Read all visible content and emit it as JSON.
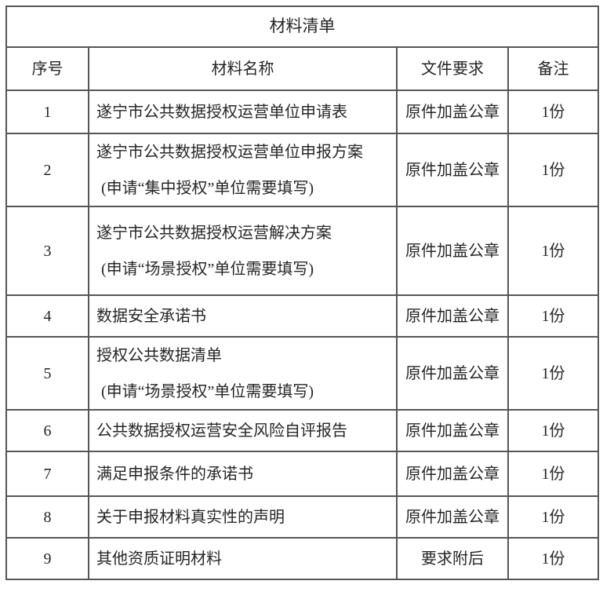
{
  "table": {
    "title": "材料清单",
    "headers": [
      "序号",
      "材料名称",
      "文件要求",
      "备注"
    ],
    "rows": [
      {
        "seq": "1",
        "name_lines": [
          "遂宁市公共数据授权运营单位申请表"
        ],
        "requirement": "原件加盖公章",
        "note": "1份"
      },
      {
        "seq": "2",
        "name_lines": [
          "遂宁市公共数据授权运营单位申报方案",
          "(申请“集中授权”单位需要填写)"
        ],
        "requirement": "原件加盖公章",
        "note": "1份"
      },
      {
        "seq": "3",
        "name_lines": [
          "遂宁市公共数据授权运营解决方案",
          "(申请“场景授权”单位需要填写)"
        ],
        "requirement": "原件加盖公章",
        "note": "1份"
      },
      {
        "seq": "4",
        "name_lines": [
          "数据安全承诺书"
        ],
        "requirement": "原件加盖公章",
        "note": "1份"
      },
      {
        "seq": "5",
        "name_lines": [
          "授权公共数据清单",
          "(申请“场景授权”单位需要填写)"
        ],
        "requirement": "原件加盖公章",
        "note": "1份"
      },
      {
        "seq": "6",
        "name_lines": [
          "公共数据授权运营安全风险自评报告"
        ],
        "requirement": "原件加盖公章",
        "note": "1份"
      },
      {
        "seq": "7",
        "name_lines": [
          "满足申报条件的承诺书"
        ],
        "requirement": "原件加盖公章",
        "note": "1份"
      },
      {
        "seq": "8",
        "name_lines": [
          "关于申报材料真实性的声明"
        ],
        "requirement": "原件加盖公章",
        "note": "1份"
      },
      {
        "seq": "9",
        "name_lines": [
          "其他资质证明材料"
        ],
        "requirement": "要求附后",
        "note": "1份"
      }
    ],
    "colors": {
      "border": "#565656",
      "text": "#262626",
      "background": "#ffffff"
    }
  }
}
